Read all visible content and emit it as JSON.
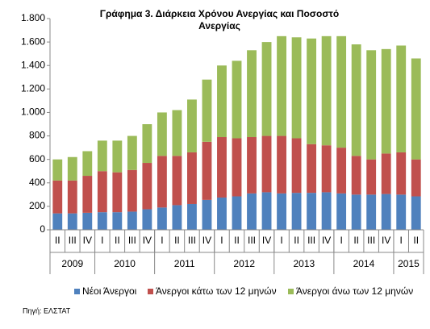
{
  "chart_data": {
    "type": "stacked-bar",
    "title": [
      "Γράφημα 3. Διάρκεια Χρόνου Ανεργίας  και Ποσοστό",
      "Ανεργίας"
    ],
    "groups": [
      {
        "year": "2009",
        "quarters": [
          "II",
          "III",
          "IV"
        ]
      },
      {
        "year": "2010",
        "quarters": [
          "I",
          "II",
          "III",
          "IV"
        ]
      },
      {
        "year": "2011",
        "quarters": [
          "I",
          "II",
          "III",
          "IV"
        ]
      },
      {
        "year": "2012",
        "quarters": [
          "I",
          "II",
          "III",
          "IV"
        ]
      },
      {
        "year": "2013",
        "quarters": [
          "I",
          "II",
          "III",
          "IV"
        ]
      },
      {
        "year": "2014",
        "quarters": [
          "I",
          "II",
          "III",
          "IV"
        ]
      },
      {
        "year": "2015",
        "quarters": [
          "I",
          "II"
        ]
      }
    ],
    "series": [
      {
        "name": "Νέοι Άνεργοι",
        "color": "#4f81bd",
        "values": [
          140,
          140,
          145,
          150,
          150,
          155,
          175,
          190,
          210,
          220,
          255,
          275,
          285,
          310,
          320,
          310,
          315,
          315,
          320,
          310,
          300,
          300,
          305,
          300,
          285
        ]
      },
      {
        "name": "Άνεργοι κάτω των 12 μηνών",
        "color": "#c0504d",
        "values": [
          280,
          280,
          315,
          350,
          340,
          355,
          395,
          440,
          420,
          440,
          495,
          515,
          495,
          480,
          480,
          490,
          465,
          415,
          400,
          390,
          330,
          300,
          345,
          360,
          315
        ]
      },
      {
        "name": "Άνεργοι άνω των 12 μηνών",
        "color": "#9bbb59",
        "values": [
          180,
          200,
          210,
          260,
          270,
          290,
          330,
          370,
          390,
          450,
          530,
          610,
          660,
          740,
          800,
          850,
          860,
          900,
          930,
          950,
          950,
          930,
          890,
          910,
          860
        ]
      }
    ],
    "ylim": [
      0,
      1800
    ],
    "yticks": [
      0,
      200,
      400,
      600,
      800,
      {
        "value": 1000,
        "label": "1.000"
      },
      {
        "value": 1200,
        "label": "1.200"
      },
      {
        "value": 1400,
        "label": "1.400"
      },
      {
        "value": 1600,
        "label": "1.600"
      },
      {
        "value": 1800,
        "label": "1.800"
      }
    ],
    "source": "Πηγή: ΕΛΣΤΑΤ"
  }
}
